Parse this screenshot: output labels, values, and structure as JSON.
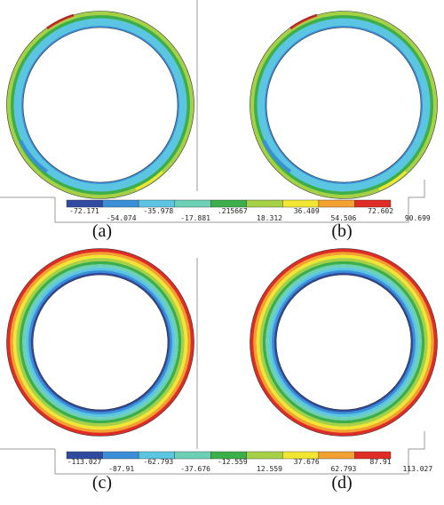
{
  "figures": [
    {
      "panels": [
        "(a)",
        "(b)"
      ],
      "legend": {
        "labels": [
          "-72.171",
          "-54.074",
          "-35.978",
          "-17.881",
          ".215667",
          "18.312",
          "36.409",
          "54.506",
          "72.602",
          "90.699"
        ],
        "colors": [
          "#2f4aa0",
          "#3a8fd8",
          "#5cc6e2",
          "#6cd0b4",
          "#3caf4a",
          "#a6d046",
          "#f2e632",
          "#f2a030",
          "#e02c26"
        ]
      }
    },
    {
      "panels": [
        "(c)",
        "(d)"
      ],
      "legend": {
        "labels": [
          "-113.027",
          "-87.91",
          "-62.793",
          "-37.676",
          "-12.559",
          "12.559",
          "37.676",
          "62.793",
          "87.91",
          "113.027"
        ],
        "colors": [
          "#2f4aa0",
          "#3a8fd8",
          "#5cc6e2",
          "#6cd0b4",
          "#3caf4a",
          "#a6d046",
          "#f2e632",
          "#f2a030",
          "#e02c26"
        ]
      }
    }
  ]
}
